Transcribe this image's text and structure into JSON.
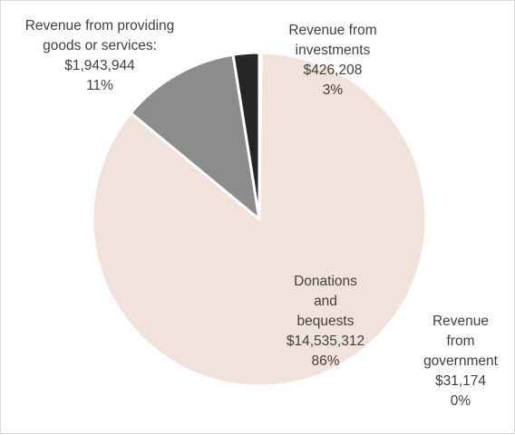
{
  "chart_data": {
    "type": "pie",
    "slices": [
      {
        "label_lines": [
          "Revenue",
          "from",
          "government"
        ],
        "value_text": "$31,174",
        "percent_text": "0%",
        "value": 31174,
        "color": "#404040"
      },
      {
        "label_lines": [
          "Donations",
          "and",
          "bequests"
        ],
        "value_text": "$14,535,312",
        "percent_text": "86%",
        "value": 14535312,
        "color": "#f2e2dc"
      },
      {
        "label_lines": [
          "Revenue from providing",
          "goods or services:"
        ],
        "value_text": "$1,943,944",
        "percent_text": "11%",
        "value": 1943944,
        "color": "#8c8c8c"
      },
      {
        "label_lines": [
          "Revenue from",
          "investments"
        ],
        "value_text": "$426,208",
        "percent_text": "3%",
        "value": 426208,
        "color": "#262626"
      }
    ]
  }
}
